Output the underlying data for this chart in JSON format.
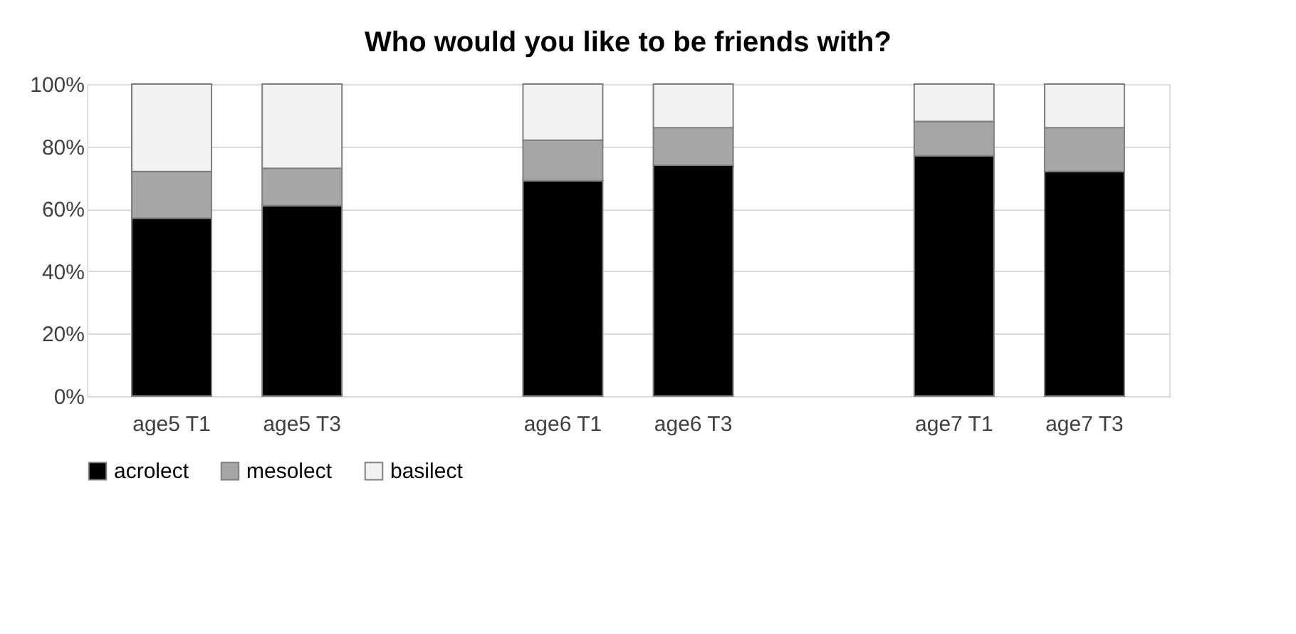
{
  "chart_data": {
    "type": "bar",
    "stacked": true,
    "title": "Who would you like to be friends with?",
    "categories": [
      "age5 T1",
      "age5 T3",
      null,
      "age6 T1",
      "age6 T3",
      null,
      "age7 T1",
      "age7 T3"
    ],
    "series": [
      {
        "name": "acrolect",
        "color": "#000000",
        "values": [
          57,
          61,
          null,
          69,
          74,
          null,
          77,
          72
        ]
      },
      {
        "name": "mesolect",
        "color": "#a6a6a6",
        "values": [
          15,
          12,
          null,
          13,
          12,
          null,
          11,
          14
        ]
      },
      {
        "name": "basilect",
        "color": "#f2f2f2",
        "values": [
          28,
          27,
          null,
          18,
          14,
          null,
          12,
          14
        ]
      }
    ],
    "ylim": [
      0,
      100
    ],
    "yticks": [
      {
        "value": 0,
        "label": "0%"
      },
      {
        "value": 20,
        "label": "20%"
      },
      {
        "value": 40,
        "label": "40%"
      },
      {
        "value": 60,
        "label": "60%"
      },
      {
        "value": 80,
        "label": "80%"
      },
      {
        "value": 100,
        "label": "100%"
      }
    ],
    "grid": "y",
    "legend": "bottom"
  }
}
